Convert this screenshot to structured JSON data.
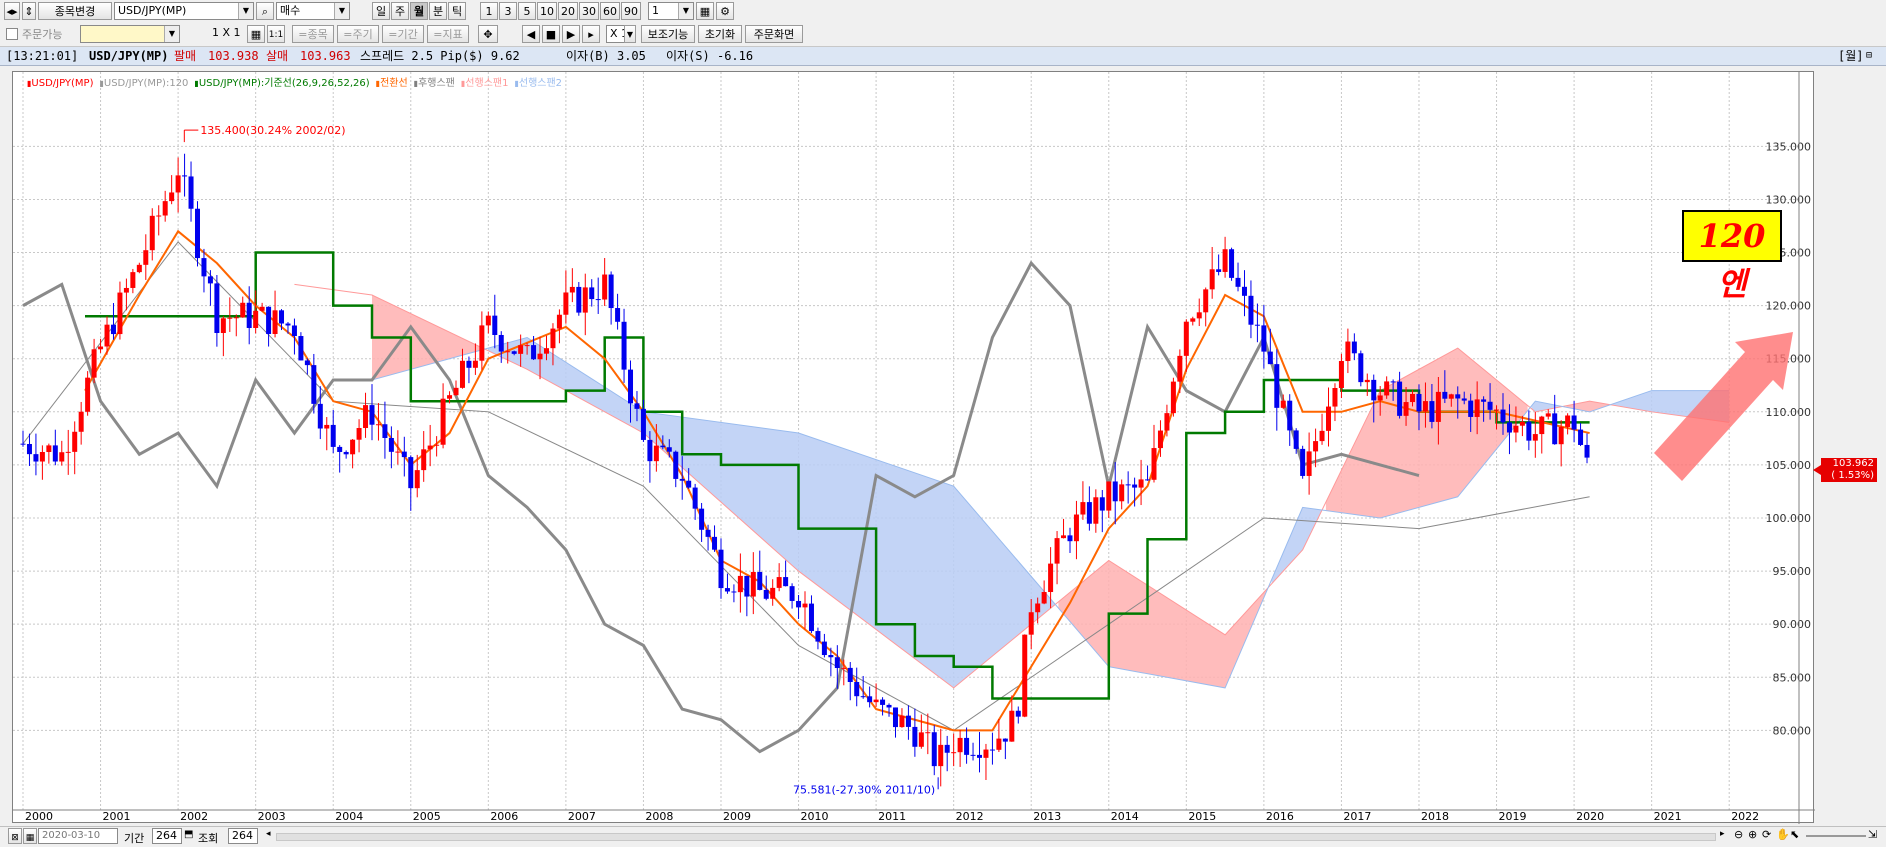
{
  "toolbar": {
    "stock_change_label": "종목변경",
    "symbol_value": "USD/JPY(MP)",
    "side_value": "매수",
    "period_buttons": [
      "일",
      "주",
      "월",
      "분",
      "틱"
    ],
    "active_period": "월",
    "interval_buttons": [
      "1",
      "3",
      "5",
      "10",
      "20",
      "30",
      "60",
      "90"
    ],
    "interval_value": "1"
  },
  "toolbar2": {
    "order_checkbox_label": "주문가능",
    "grid_label": "1 X 1",
    "grid_btn": "1:1",
    "btn_item": "=종목",
    "btn_cycle": "=주기",
    "btn_period": "=기간",
    "btn_indicator": "=지표",
    "multiplier_value": "X 1",
    "aux_label": "보조기능",
    "reset_label": "초기화",
    "order_screen_label": "주문화면"
  },
  "status": {
    "time": "[13:21:01]",
    "symbol": "USD/JPY(MP)",
    "sell_label": "팔매",
    "sell_value": "103.938",
    "buy_label": "살매",
    "buy_value": "103.963",
    "spread_text": "스프레드 2.5 Pip($) 9.62",
    "interest_b": "이자(B) 3.05",
    "interest_s": "이자(S) -6.16",
    "period_tag": "[월]"
  },
  "legend": {
    "items": [
      {
        "label": "USD/JPY(MP)",
        "color": "#ff0000"
      },
      {
        "label": "USD/JPY(MP):120",
        "color": "#999999"
      },
      {
        "label": "USD/JPY(MP):기준선(26,9,26,52,26)",
        "color": "#007a00"
      },
      {
        "label": "전환선",
        "color": "#ff6600"
      },
      {
        "label": "후행스팬",
        "color": "#808080"
      },
      {
        "label": "선행스팬1",
        "color": "#ff9999"
      },
      {
        "label": "선행스팬2",
        "color": "#99bbee"
      }
    ]
  },
  "chart_data": {
    "type": "candlestick",
    "y_ticks": [
      "135.000",
      "130.000",
      "125.000",
      "120.000",
      "115.000",
      "110.000",
      "105.000",
      "100.000",
      "95.000",
      "90.000",
      "85.000",
      "80.000"
    ],
    "x_ticks": [
      "2000",
      "2001",
      "2002",
      "2003",
      "2004",
      "2005",
      "2006",
      "2007",
      "2008",
      "2009",
      "2010",
      "2011",
      "2012",
      "2013",
      "2014",
      "2015",
      "2016",
      "2017",
      "2018",
      "2019",
      "2020",
      "2021",
      "2022"
    ],
    "ylim": [
      72.5,
      138.8
    ],
    "high_annotation": "135.400(30.24% 2002/02)",
    "low_annotation": "75.581(-27.30% 2011/10)",
    "last_price": "103.962",
    "last_change": "( 1.53%)",
    "overlay_text": "120엔",
    "series": [
      {
        "name": "USD/JPY(MP)",
        "x": [
          2000.0,
          2000.5,
          2001.0,
          2001.5,
          2002.0,
          2002.5,
          2003.0,
          2003.5,
          2004.0,
          2004.5,
          2005.0,
          2005.5,
          2006.0,
          2006.5,
          2007.0,
          2007.5,
          2008.0,
          2008.5,
          2009.0,
          2009.5,
          2010.0,
          2010.5,
          2011.0,
          2011.5,
          2011.8,
          2012.0,
          2012.5,
          2012.8,
          2013.0,
          2013.5,
          2014.0,
          2014.5,
          2015.0,
          2015.5,
          2016.0,
          2016.5,
          2017.0,
          2017.5,
          2018.0,
          2018.5,
          2019.0,
          2019.5,
          2020.0,
          2020.2
        ],
        "y": [
          107,
          106,
          116,
          124,
          133,
          119,
          119,
          118,
          106,
          110,
          103,
          111,
          118,
          115,
          120,
          122,
          107,
          104,
          95,
          93,
          93,
          86,
          82,
          80,
          77,
          79,
          79,
          81,
          92,
          99,
          102,
          103,
          119,
          124,
          116,
          103,
          116,
          112,
          110,
          111,
          110,
          108,
          109,
          104
        ]
      },
      {
        "name": "USD/JPY(MP):120",
        "x": [
          2000,
          2002,
          2004,
          2006,
          2008,
          2010,
          2012,
          2014,
          2016,
          2018,
          2020.2
        ],
        "y": [
          107,
          126,
          111,
          110,
          103,
          88,
          80,
          90,
          100,
          99,
          102
        ]
      },
      {
        "name": "기준선",
        "x": [
          2000.8,
          2002.0,
          2003.0,
          2003.5,
          2004.0,
          2004.5,
          2005.0,
          2006.0,
          2007.0,
          2007.5,
          2008.0,
          2008.5,
          2009.0,
          2010.0,
          2011.0,
          2011.5,
          2012.0,
          2012.5,
          2013.0,
          2014.0,
          2014.5,
          2015.0,
          2015.5,
          2016.0,
          2017.0,
          2018.0,
          2019.0,
          2020.2
        ],
        "y": [
          119,
          119,
          125,
          125,
          120,
          117,
          111,
          111,
          112,
          117,
          110,
          106,
          105,
          99,
          90,
          87,
          86,
          83,
          83,
          91,
          98,
          108,
          110,
          113,
          112,
          110,
          109,
          109
        ]
      },
      {
        "name": "전환선",
        "x": [
          2000.8,
          2001.5,
          2002.0,
          2002.5,
          2003.0,
          2003.5,
          2004.0,
          2004.5,
          2005.0,
          2005.5,
          2006.0,
          2007.0,
          2007.5,
          2008.0,
          2008.5,
          2009.0,
          2009.5,
          2010.0,
          2010.5,
          2011.0,
          2011.5,
          2012.0,
          2012.5,
          2013.0,
          2013.5,
          2014.0,
          2014.5,
          2015.0,
          2015.5,
          2016.0,
          2016.5,
          2017.0,
          2017.5,
          2018.0,
          2019.0,
          2020.2
        ],
        "y": [
          112,
          121,
          127,
          124,
          120,
          117,
          111,
          110,
          105,
          108,
          115,
          118,
          115,
          110,
          104,
          96,
          94,
          90,
          87,
          82,
          81,
          80,
          80,
          86,
          92,
          99,
          103,
          114,
          121,
          119,
          110,
          110,
          111,
          110,
          110,
          108
        ]
      },
      {
        "name": "후행스팬",
        "x": [
          2000.0,
          2000.5,
          2001.0,
          2001.5,
          2002.0,
          2002.5,
          2003.0,
          2003.5,
          2004.0,
          2004.5,
          2005.0,
          2005.5,
          2006.0,
          2006.5,
          2007.0,
          2007.5,
          2008.0,
          2008.5,
          2009.0,
          2009.5,
          2010.0,
          2010.5,
          2011.0,
          2011.5,
          2012.0,
          2012.5,
          2013.0,
          2013.5,
          2014.0,
          2014.5,
          2015.0,
          2015.5,
          2016.0,
          2016.5,
          2017.0,
          2017.5,
          2018.0
        ],
        "y": [
          120,
          122,
          111,
          106,
          108,
          103,
          113,
          108,
          113,
          113,
          118,
          113,
          104,
          101,
          97,
          90,
          88,
          82,
          81,
          78,
          80,
          84,
          104,
          102,
          104,
          117,
          124,
          120,
          103,
          118,
          112,
          110,
          117,
          105,
          106,
          105,
          104
        ]
      },
      {
        "name": "선행스팬1",
        "x": [
          2003.5,
          2004.5,
          2006.5,
          2008.0,
          2010.0,
          2012.0,
          2014.0,
          2015.5,
          2016.5,
          2017.5,
          2018.5,
          2019.5,
          2020.2,
          2021.0,
          2022.0
        ],
        "y": [
          122,
          121,
          114,
          108,
          95,
          84,
          96,
          89,
          97,
          112,
          116,
          110,
          111,
          110,
          109
        ]
      },
      {
        "name": "선행스팬2",
        "x": [
          2004.5,
          2006.5,
          2008.0,
          2010.0,
          2012.0,
          2014.0,
          2015.5,
          2016.5,
          2017.5,
          2018.5,
          2019.5,
          2020.2,
          2021.0,
          2022.0
        ],
        "y": [
          113,
          117,
          110,
          108,
          103,
          86,
          84,
          101,
          100,
          102,
          111,
          110,
          112,
          112
        ]
      }
    ]
  },
  "bottom": {
    "date_value": "2020-03-10",
    "period_label": "기간",
    "period_value": "264",
    "view_label": "조회",
    "view_value": "264"
  }
}
